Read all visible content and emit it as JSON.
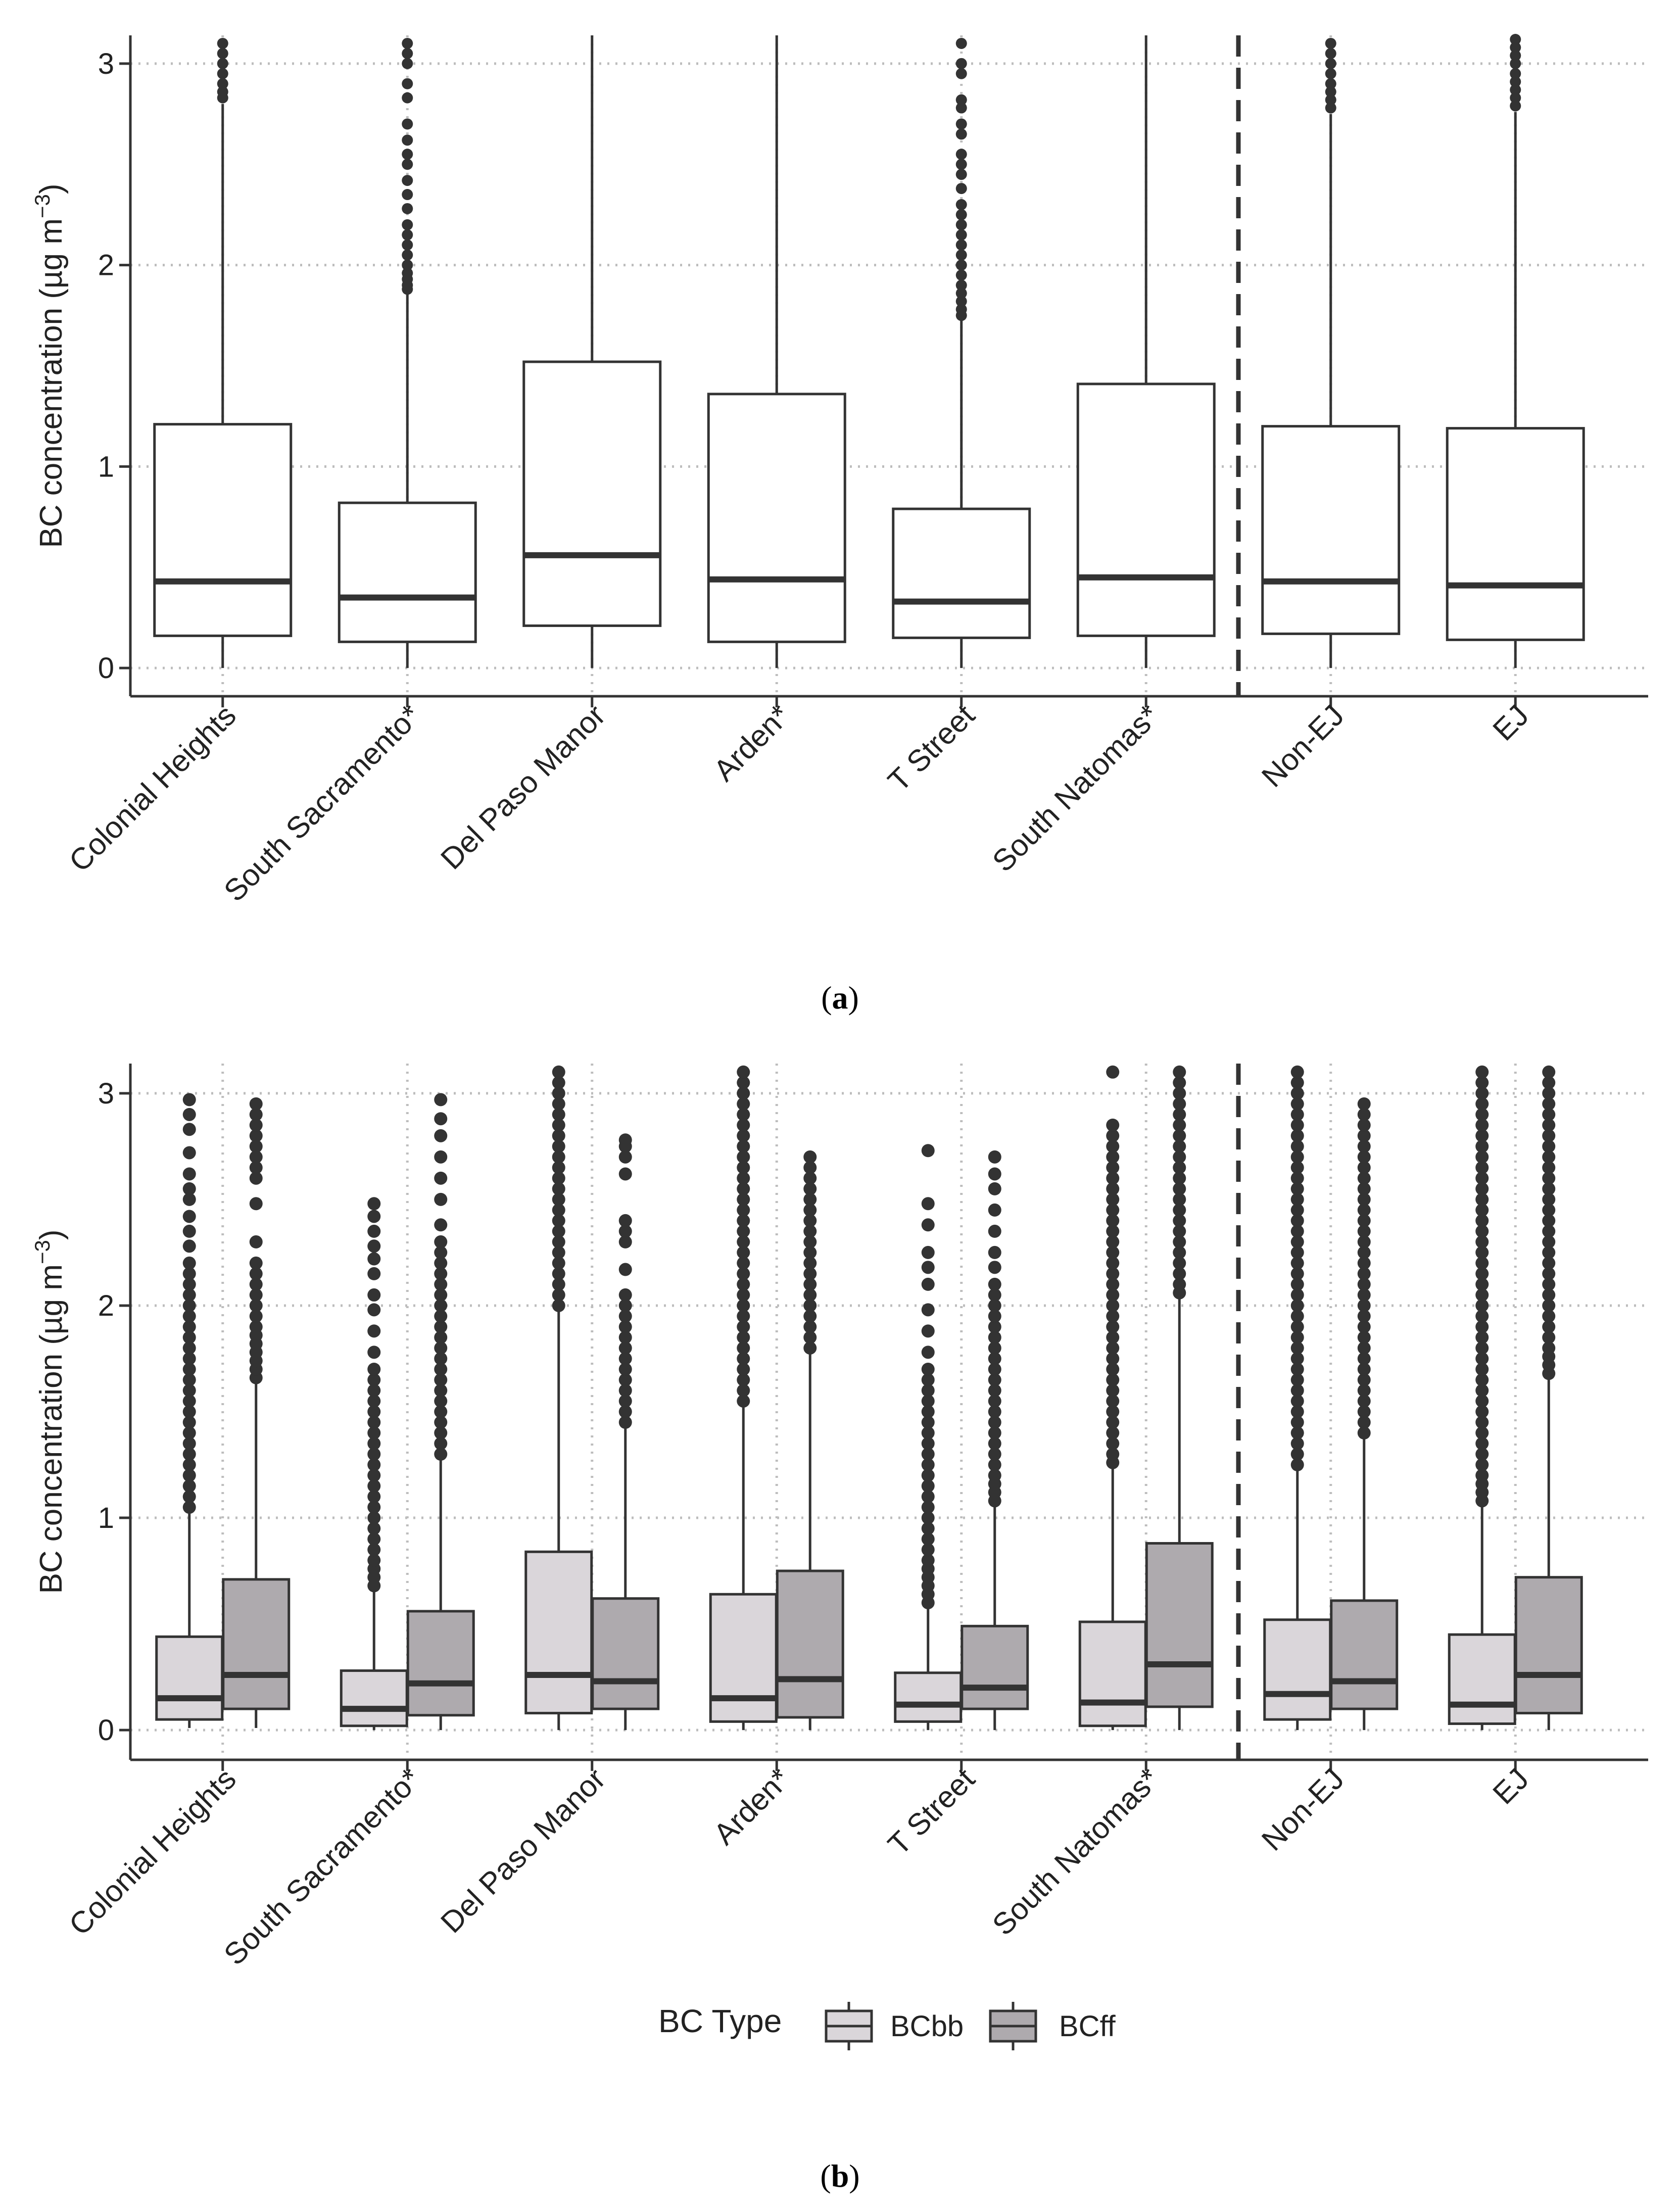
{
  "colors": {
    "box_a_fill": "#ffffff",
    "bcbb_fill": "#dad6da",
    "bcff_fill": "#aeaaae",
    "stroke": "#333333",
    "grid": "#bdbdbd",
    "text": "#222222"
  },
  "chart_data": [
    {
      "panel": "a",
      "type": "boxplot",
      "caption_open": "(",
      "caption_letter": "a",
      "caption_close": ")",
      "ylabel": "BC concentration (µg m⁻³)",
      "ylabel_parts": [
        "BC concentration (µg m",
        "−3",
        ")"
      ],
      "xlabel": "",
      "ylim": [
        -0.14,
        3.14
      ],
      "yticks": [
        0,
        1,
        2,
        3
      ],
      "grid": "dotted major gridlines",
      "separator_after_index": 5,
      "categories": [
        "Colonial Heights",
        "South Sacramento*",
        "Del Paso Manor",
        "Arden*",
        "T Street",
        "South Natomas*",
        "Non-EJ",
        "EJ"
      ],
      "series": [
        {
          "name": "BC",
          "boxes": [
            {
              "q1": 0.16,
              "median": 0.43,
              "q3": 1.21,
              "whisker_low": 0.0,
              "whisker_high": 2.8,
              "outliers": [
                2.83,
                2.86,
                2.9,
                2.95,
                3.0,
                3.05,
                3.1
              ]
            },
            {
              "q1": 0.13,
              "median": 0.35,
              "q3": 0.82,
              "whisker_low": 0.0,
              "whisker_high": 1.86,
              "outliers": [
                1.88,
                1.9,
                1.93,
                1.96,
                2.0,
                2.05,
                2.1,
                2.15,
                2.2,
                2.28,
                2.35,
                2.42,
                2.5,
                2.55,
                2.62,
                2.7,
                2.83,
                2.9,
                3.0,
                3.05,
                3.1
              ]
            },
            {
              "q1": 0.21,
              "median": 0.56,
              "q3": 1.52,
              "whisker_low": 0.0,
              "whisker_high": 3.14,
              "outliers": []
            },
            {
              "q1": 0.13,
              "median": 0.44,
              "q3": 1.36,
              "whisker_low": 0.0,
              "whisker_high": 3.14,
              "outliers": []
            },
            {
              "q1": 0.15,
              "median": 0.33,
              "q3": 0.79,
              "whisker_low": 0.0,
              "whisker_high": 1.73,
              "outliers": [
                1.75,
                1.78,
                1.82,
                1.86,
                1.9,
                1.95,
                2.0,
                2.05,
                2.1,
                2.15,
                2.2,
                2.25,
                2.3,
                2.38,
                2.45,
                2.5,
                2.55,
                2.65,
                2.7,
                2.78,
                2.82,
                2.95,
                3.0,
                3.1
              ]
            },
            {
              "q1": 0.16,
              "median": 0.45,
              "q3": 1.41,
              "whisker_low": 0.0,
              "whisker_high": 3.14,
              "outliers": []
            },
            {
              "q1": 0.17,
              "median": 0.43,
              "q3": 1.2,
              "whisker_low": 0.0,
              "whisker_high": 2.75,
              "outliers": [
                2.78,
                2.82,
                2.86,
                2.9,
                2.95,
                3.0,
                3.05,
                3.1
              ]
            },
            {
              "q1": 0.14,
              "median": 0.41,
              "q3": 1.19,
              "whisker_low": 0.0,
              "whisker_high": 2.76,
              "outliers": [
                2.79,
                2.83,
                2.87,
                2.91,
                2.95,
                3.0,
                3.04,
                3.08,
                3.12
              ]
            }
          ]
        }
      ]
    },
    {
      "panel": "b",
      "type": "boxplot",
      "caption_open": "(",
      "caption_letter": "b",
      "caption_close": ")",
      "ylabel": "BC concentration (µg m⁻³)",
      "ylabel_parts": [
        "BC concentration (µg m",
        "−3",
        ")"
      ],
      "xlabel": "",
      "ylim": [
        -0.14,
        3.14
      ],
      "yticks": [
        0,
        1,
        2,
        3
      ],
      "grid": "dotted major gridlines",
      "separator_after_index": 5,
      "categories": [
        "Colonial Heights",
        "South Sacramento*",
        "Del Paso Manor",
        "Arden*",
        "T Street",
        "South Natomas*",
        "Non-EJ",
        "EJ"
      ],
      "legend": {
        "title": "BC Type",
        "position": "bottom",
        "entries": [
          "BCbb",
          "BCff"
        ]
      },
      "series": [
        {
          "name": "BCbb",
          "boxes": [
            {
              "q1": 0.05,
              "median": 0.15,
              "q3": 0.44,
              "whisker_low": 0.01,
              "whisker_high": 1.02,
              "outliers": [
                1.05,
                1.1,
                1.15,
                1.2,
                1.25,
                1.3,
                1.35,
                1.4,
                1.45,
                1.5,
                1.55,
                1.6,
                1.65,
                1.7,
                1.75,
                1.8,
                1.85,
                1.9,
                1.95,
                2.0,
                2.05,
                2.1,
                2.15,
                2.2,
                2.28,
                2.35,
                2.42,
                2.5,
                2.55,
                2.62,
                2.72,
                2.83,
                2.9,
                2.97
              ]
            },
            {
              "q1": 0.02,
              "median": 0.1,
              "q3": 0.28,
              "whisker_low": 0.0,
              "whisker_high": 0.66,
              "outliers": [
                0.68,
                0.72,
                0.76,
                0.8,
                0.85,
                0.9,
                0.95,
                1.0,
                1.05,
                1.1,
                1.15,
                1.2,
                1.25,
                1.3,
                1.35,
                1.4,
                1.45,
                1.5,
                1.55,
                1.6,
                1.65,
                1.7,
                1.78,
                1.88,
                1.98,
                2.05,
                2.15,
                2.22,
                2.28,
                2.35,
                2.42,
                2.48
              ]
            },
            {
              "q1": 0.08,
              "median": 0.26,
              "q3": 0.84,
              "whisker_low": 0.0,
              "whisker_high": 1.98,
              "outliers": [
                2.0,
                2.05,
                2.1,
                2.15,
                2.2,
                2.25,
                2.3,
                2.35,
                2.4,
                2.45,
                2.5,
                2.55,
                2.6,
                2.65,
                2.7,
                2.75,
                2.8,
                2.85,
                2.9,
                2.95,
                3.0,
                3.05,
                3.1
              ]
            },
            {
              "q1": 0.04,
              "median": 0.15,
              "q3": 0.64,
              "whisker_low": 0.0,
              "whisker_high": 1.52,
              "outliers": [
                1.55,
                1.6,
                1.65,
                1.7,
                1.75,
                1.8,
                1.85,
                1.9,
                1.95,
                2.0,
                2.05,
                2.1,
                2.15,
                2.2,
                2.25,
                2.3,
                2.35,
                2.4,
                2.45,
                2.5,
                2.55,
                2.6,
                2.65,
                2.7,
                2.75,
                2.8,
                2.85,
                2.9,
                2.95,
                3.0,
                3.05,
                3.1
              ]
            },
            {
              "q1": 0.04,
              "median": 0.12,
              "q3": 0.27,
              "whisker_low": 0.0,
              "whisker_high": 0.59,
              "outliers": [
                0.6,
                0.64,
                0.68,
                0.72,
                0.76,
                0.8,
                0.85,
                0.9,
                0.95,
                1.0,
                1.05,
                1.1,
                1.15,
                1.2,
                1.25,
                1.3,
                1.35,
                1.4,
                1.45,
                1.5,
                1.55,
                1.6,
                1.65,
                1.7,
                1.78,
                1.88,
                1.98,
                2.1,
                2.18,
                2.25,
                2.38,
                2.48,
                2.73
              ]
            },
            {
              "q1": 0.02,
              "median": 0.13,
              "q3": 0.51,
              "whisker_low": 0.0,
              "whisker_high": 1.24,
              "outliers": [
                1.26,
                1.3,
                1.35,
                1.4,
                1.45,
                1.5,
                1.55,
                1.6,
                1.65,
                1.7,
                1.75,
                1.8,
                1.85,
                1.9,
                1.95,
                2.0,
                2.05,
                2.1,
                2.15,
                2.2,
                2.25,
                2.3,
                2.35,
                2.4,
                2.45,
                2.5,
                2.55,
                2.6,
                2.65,
                2.7,
                2.75,
                2.8,
                2.85,
                3.1
              ]
            },
            {
              "q1": 0.05,
              "median": 0.17,
              "q3": 0.52,
              "whisker_low": 0.0,
              "whisker_high": 1.22,
              "outliers": [
                1.25,
                1.3,
                1.35,
                1.4,
                1.45,
                1.5,
                1.55,
                1.6,
                1.65,
                1.7,
                1.75,
                1.8,
                1.85,
                1.9,
                1.95,
                2.0,
                2.05,
                2.1,
                2.15,
                2.2,
                2.25,
                2.3,
                2.35,
                2.4,
                2.45,
                2.5,
                2.55,
                2.6,
                2.65,
                2.7,
                2.75,
                2.8,
                2.85,
                2.9,
                2.95,
                3.0,
                3.05,
                3.1
              ]
            },
            {
              "q1": 0.03,
              "median": 0.12,
              "q3": 0.45,
              "whisker_low": 0.0,
              "whisker_high": 1.06,
              "outliers": [
                1.08,
                1.12,
                1.16,
                1.2,
                1.25,
                1.3,
                1.35,
                1.4,
                1.45,
                1.5,
                1.55,
                1.6,
                1.65,
                1.7,
                1.75,
                1.8,
                1.85,
                1.9,
                1.95,
                2.0,
                2.05,
                2.1,
                2.15,
                2.2,
                2.25,
                2.3,
                2.35,
                2.4,
                2.45,
                2.5,
                2.55,
                2.6,
                2.65,
                2.7,
                2.75,
                2.8,
                2.85,
                2.9,
                2.95,
                3.0,
                3.05,
                3.1
              ]
            }
          ]
        },
        {
          "name": "BCff",
          "boxes": [
            {
              "q1": 0.1,
              "median": 0.26,
              "q3": 0.71,
              "whisker_low": 0.01,
              "whisker_high": 1.64,
              "outliers": [
                1.66,
                1.7,
                1.74,
                1.78,
                1.82,
                1.86,
                1.9,
                1.95,
                2.0,
                2.05,
                2.1,
                2.15,
                2.2,
                2.3,
                2.48,
                2.6,
                2.65,
                2.7,
                2.75,
                2.8,
                2.85,
                2.9,
                2.95
              ]
            },
            {
              "q1": 0.07,
              "median": 0.22,
              "q3": 0.56,
              "whisker_low": 0.0,
              "whisker_high": 1.28,
              "outliers": [
                1.3,
                1.35,
                1.4,
                1.45,
                1.5,
                1.55,
                1.6,
                1.65,
                1.7,
                1.75,
                1.8,
                1.85,
                1.9,
                1.95,
                2.0,
                2.05,
                2.1,
                2.15,
                2.2,
                2.25,
                2.3,
                2.38,
                2.5,
                2.6,
                2.7,
                2.8,
                2.88,
                2.97
              ]
            },
            {
              "q1": 0.1,
              "median": 0.23,
              "q3": 0.62,
              "whisker_low": 0.0,
              "whisker_high": 1.42,
              "outliers": [
                1.45,
                1.5,
                1.55,
                1.6,
                1.65,
                1.7,
                1.75,
                1.8,
                1.85,
                1.9,
                1.95,
                2.0,
                2.05,
                2.17,
                2.3,
                2.35,
                2.4,
                2.62,
                2.7,
                2.75,
                2.78
              ]
            },
            {
              "q1": 0.06,
              "median": 0.24,
              "q3": 0.75,
              "whisker_low": 0.0,
              "whisker_high": 1.78,
              "outliers": [
                1.8,
                1.85,
                1.9,
                1.95,
                2.0,
                2.05,
                2.1,
                2.15,
                2.2,
                2.25,
                2.3,
                2.35,
                2.4,
                2.45,
                2.5,
                2.55,
                2.6,
                2.65,
                2.7
              ]
            },
            {
              "q1": 0.1,
              "median": 0.2,
              "q3": 0.49,
              "whisker_low": 0.0,
              "whisker_high": 1.05,
              "outliers": [
                1.08,
                1.12,
                1.16,
                1.2,
                1.25,
                1.3,
                1.35,
                1.4,
                1.45,
                1.5,
                1.55,
                1.6,
                1.65,
                1.7,
                1.75,
                1.8,
                1.85,
                1.9,
                1.95,
                2.0,
                2.05,
                2.1,
                2.18,
                2.25,
                2.35,
                2.45,
                2.55,
                2.62,
                2.7
              ]
            },
            {
              "q1": 0.11,
              "median": 0.31,
              "q3": 0.88,
              "whisker_low": 0.0,
              "whisker_high": 2.04,
              "outliers": [
                2.06,
                2.1,
                2.15,
                2.2,
                2.25,
                2.3,
                2.35,
                2.4,
                2.45,
                2.5,
                2.55,
                2.6,
                2.65,
                2.7,
                2.75,
                2.8,
                2.85,
                2.9,
                2.95,
                3.0,
                3.05,
                3.1
              ]
            },
            {
              "q1": 0.1,
              "median": 0.23,
              "q3": 0.61,
              "whisker_low": 0.0,
              "whisker_high": 1.38,
              "outliers": [
                1.4,
                1.45,
                1.5,
                1.55,
                1.6,
                1.65,
                1.7,
                1.75,
                1.8,
                1.85,
                1.9,
                1.95,
                2.0,
                2.05,
                2.1,
                2.15,
                2.2,
                2.25,
                2.3,
                2.35,
                2.4,
                2.45,
                2.5,
                2.55,
                2.6,
                2.65,
                2.7,
                2.75,
                2.8,
                2.85,
                2.9,
                2.95
              ]
            },
            {
              "q1": 0.08,
              "median": 0.26,
              "q3": 0.72,
              "whisker_low": 0.0,
              "whisker_high": 1.66,
              "outliers": [
                1.68,
                1.72,
                1.76,
                1.8,
                1.85,
                1.9,
                1.95,
                2.0,
                2.05,
                2.1,
                2.15,
                2.2,
                2.25,
                2.3,
                2.35,
                2.4,
                2.45,
                2.5,
                2.55,
                2.6,
                2.65,
                2.7,
                2.75,
                2.8,
                2.85,
                2.9,
                2.95,
                3.0,
                3.05,
                3.1
              ]
            }
          ]
        }
      ]
    }
  ]
}
